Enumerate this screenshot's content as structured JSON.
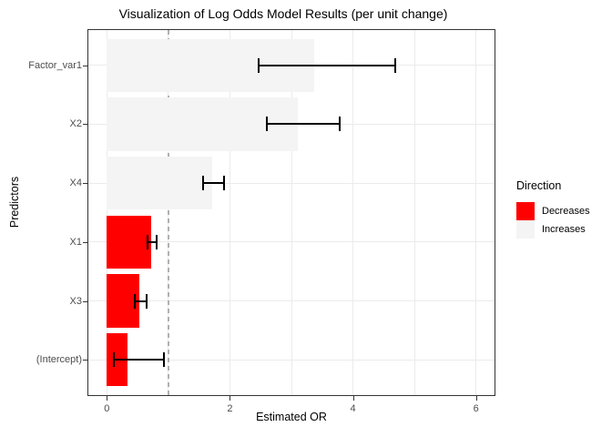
{
  "chart_data": {
    "type": "bar",
    "orientation": "horizontal",
    "title": "Visualization of Log Odds Model Results (per unit change)",
    "xlabel": "Estimated OR",
    "ylabel": "Predictors",
    "categories": [
      "Factor_var1",
      "X2",
      "X4",
      "X1",
      "X3",
      "(Intercept)"
    ],
    "values": [
      3.37,
      3.1,
      1.71,
      0.72,
      0.53,
      0.33
    ],
    "ci_low": [
      2.46,
      2.6,
      1.57,
      0.66,
      0.45,
      0.12
    ],
    "ci_high": [
      4.69,
      3.79,
      1.9,
      0.81,
      0.64,
      0.93
    ],
    "direction": [
      "Increases",
      "Increases",
      "Increases",
      "Decreases",
      "Decreases",
      "Decreases"
    ],
    "x_ticks": [
      0,
      2,
      4,
      6
    ],
    "x_gridlines": [
      0,
      1,
      2,
      3,
      4,
      5,
      6
    ],
    "xlim": [
      -0.3,
      6.3
    ],
    "reference_line_x": 1,
    "bar_width_fraction": 0.9,
    "grid": true,
    "legend": {
      "title": "Direction",
      "position": "right",
      "items": [
        {
          "label": "Decreases",
          "color": "#FF0000"
        },
        {
          "label": "Increases",
          "color": "#F4F4F4"
        }
      ]
    }
  },
  "colors": {
    "background": "#FFFFFF",
    "panel_border": "#333333",
    "gridline": "#EBEBEB",
    "reference_line": "#B0B0B0",
    "errorbar": "#000000",
    "tick": "#333333",
    "tick_label": "#4D4D4D",
    "text": "#000000"
  }
}
